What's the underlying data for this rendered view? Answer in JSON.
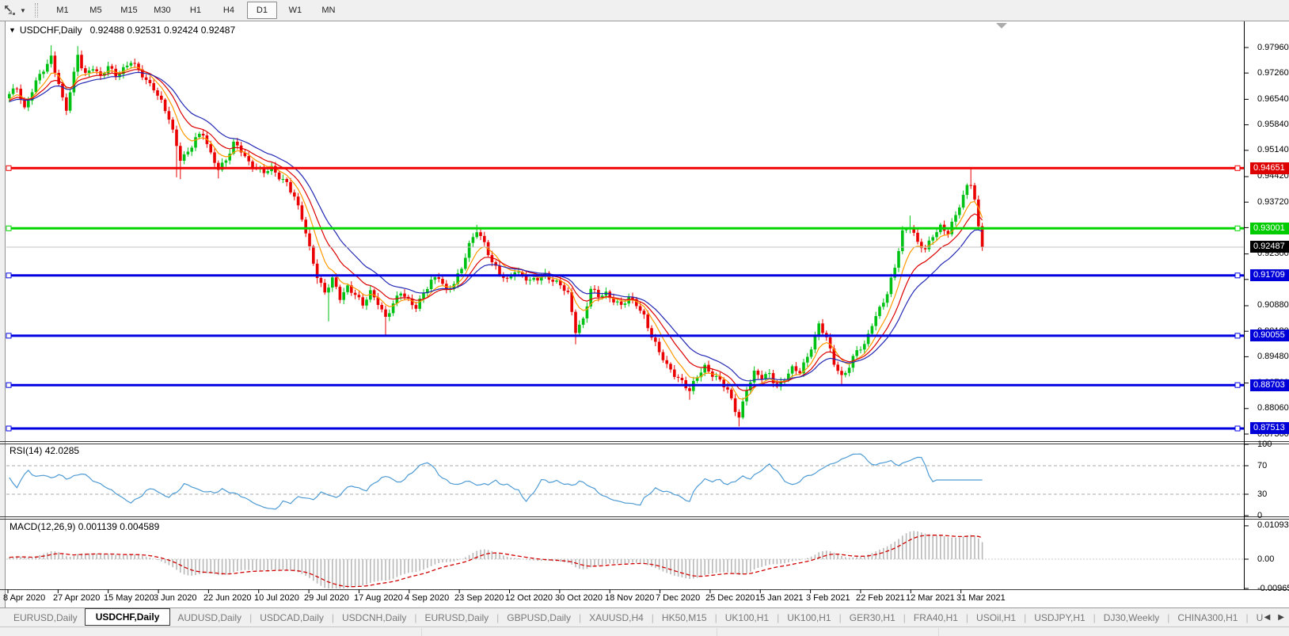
{
  "toolbar": {
    "tool_icon": "chart-cursor-icon",
    "timeframes": [
      "M1",
      "M5",
      "M15",
      "M30",
      "H1",
      "H4",
      "D1",
      "W1",
      "MN"
    ],
    "active_timeframe": "D1"
  },
  "chart": {
    "symbol_title": "USDCHF,Daily",
    "ohlc_readout": "0.92488 0.92531 0.92424 0.92487"
  },
  "indicators": {
    "rsi": {
      "label": "RSI(14)",
      "value": "42.0285"
    },
    "macd": {
      "label": "MACD(12,26,9)",
      "values": "0.001139 0.004589"
    }
  },
  "price_axis": {
    "ticks": [
      "0.97960",
      "0.97260",
      "0.96540",
      "0.95840",
      "0.95140",
      "0.94420",
      "0.93720",
      "0.93020",
      "0.92300",
      "0.91600",
      "0.90880",
      "0.90180",
      "0.89480",
      "0.88760",
      "0.88060",
      "0.87360"
    ],
    "badges": [
      {
        "label": "0.94651",
        "price": 0.94651,
        "color": "#DE0000"
      },
      {
        "label": "0.93001",
        "price": 0.93001,
        "color": "#00CC00"
      },
      {
        "label": "0.92487",
        "price": 0.92487,
        "color": "#000000"
      },
      {
        "label": "0.91709",
        "price": 0.91709,
        "color": "#0000D8"
      },
      {
        "label": "0.90055",
        "price": 0.90055,
        "color": "#0000D8"
      },
      {
        "label": "0.88703",
        "price": 0.88703,
        "color": "#0000D8"
      },
      {
        "label": "0.87513",
        "price": 0.87513,
        "color": "#0000D8"
      }
    ]
  },
  "rsi_axis": {
    "labels": [
      {
        "label": "100",
        "v": 100
      },
      {
        "label": "70",
        "v": 70
      },
      {
        "label": "30",
        "v": 30
      },
      {
        "label": "0",
        "v": 0
      }
    ],
    "dashed_levels": [
      70,
      30
    ]
  },
  "macd_axis": {
    "labels": [
      {
        "label": "0.010933",
        "v": 0.010933
      },
      {
        "label": "0.00",
        "v": 0
      },
      {
        "label": "-0.009653",
        "v": -0.009653
      }
    ]
  },
  "date_axis": [
    "8 Apr 2020",
    "27 Apr 2020",
    "15 May 2020",
    "3 Jun 2020",
    "22 Jun 2020",
    "10 Jul 2020",
    "29 Jul 2020",
    "17 Aug 2020",
    "4 Sep 2020",
    "23 Sep 2020",
    "12 Oct 2020",
    "30 Oct 2020",
    "18 Nov 2020",
    "7 Dec 2020",
    "25 Dec 2020",
    "15 Jan 2021",
    "3 Feb 2021",
    "22 Feb 2021",
    "12 Mar 2021",
    "31 Mar 2021"
  ],
  "tabbar": {
    "tabs": [
      {
        "label": "EURUSD,Daily",
        "active": false
      },
      {
        "label": "USDCHF,Daily",
        "active": true
      },
      {
        "label": "AUDUSD,Daily",
        "active": false
      },
      {
        "label": "USDCAD,Daily",
        "active": false
      },
      {
        "label": "USDCNH,Daily",
        "active": false
      },
      {
        "label": "EURUSD,Daily",
        "active": false
      },
      {
        "label": "GBPUSD,Daily",
        "active": false
      },
      {
        "label": "XAUUSD,H4",
        "active": false
      },
      {
        "label": "HK50,M15",
        "active": false
      },
      {
        "label": "UK100,H1",
        "active": false
      },
      {
        "label": "UK100,H1",
        "active": false
      },
      {
        "label": "GER30,H1",
        "active": false
      },
      {
        "label": "FRA40,H1",
        "active": false
      },
      {
        "label": "USOil,H1",
        "active": false
      },
      {
        "label": "USDJPY,H1",
        "active": false
      },
      {
        "label": "DJ30,Weekly",
        "active": false
      },
      {
        "label": "CHINA300,H1",
        "active": false
      },
      {
        "label": "U",
        "active": false
      }
    ],
    "scroll_left": "◀",
    "scroll_right": "▶"
  },
  "chart_data": {
    "type": "candlestick",
    "symbol": "USDCHF",
    "timeframe": "Daily",
    "num_candles": 257,
    "price_range_visible": [
      0.8736,
      0.9796
    ],
    "grid": false,
    "colors": {
      "up": "#00C214",
      "down": "#EA0000",
      "ma_fast": "#FF9900",
      "ma_mid": "#DD0000",
      "ma_slow": "#2328B4",
      "rsi_line": "#4E9BD4",
      "macd_bar": "#B8B8B8",
      "macd_signal": "#D00000",
      "current_price_line": "#C0C0C0"
    },
    "close_anchors": [
      [
        0,
        0.9665
      ],
      [
        2,
        0.9688
      ],
      [
        4,
        0.963
      ],
      [
        6,
        0.9678
      ],
      [
        8,
        0.9718
      ],
      [
        10,
        0.9748
      ],
      [
        11,
        0.9772
      ],
      [
        13,
        0.97
      ],
      [
        14,
        0.9655
      ],
      [
        15,
        0.9625
      ],
      [
        17,
        0.972
      ],
      [
        18,
        0.9775
      ],
      [
        19,
        0.9745
      ],
      [
        20,
        0.9725
      ],
      [
        22,
        0.9745
      ],
      [
        24,
        0.9712
      ],
      [
        26,
        0.9742
      ],
      [
        28,
        0.972
      ],
      [
        30,
        0.974
      ],
      [
        32,
        0.9758
      ],
      [
        34,
        0.973
      ],
      [
        36,
        0.9705
      ],
      [
        38,
        0.9688
      ],
      [
        40,
        0.9648
      ],
      [
        42,
        0.9598
      ],
      [
        44,
        0.9525
      ],
      [
        45,
        0.9492
      ],
      [
        47,
        0.9512
      ],
      [
        49,
        0.9548
      ],
      [
        51,
        0.9556
      ],
      [
        53,
        0.9502
      ],
      [
        55,
        0.9468
      ],
      [
        57,
        0.9488
      ],
      [
        59,
        0.953
      ],
      [
        61,
        0.9512
      ],
      [
        63,
        0.9482
      ],
      [
        65,
        0.9468
      ],
      [
        67,
        0.9452
      ],
      [
        69,
        0.9462
      ],
      [
        71,
        0.9442
      ],
      [
        73,
        0.9428
      ],
      [
        75,
        0.9385
      ],
      [
        77,
        0.9325
      ],
      [
        79,
        0.9245
      ],
      [
        81,
        0.9172
      ],
      [
        83,
        0.9125
      ],
      [
        85,
        0.9158
      ],
      [
        87,
        0.9108
      ],
      [
        89,
        0.9142
      ],
      [
        91,
        0.9122
      ],
      [
        93,
        0.9088
      ],
      [
        95,
        0.9122
      ],
      [
        97,
        0.9098
      ],
      [
        99,
        0.9058
      ],
      [
        101,
        0.9092
      ],
      [
        103,
        0.9122
      ],
      [
        105,
        0.9102
      ],
      [
        107,
        0.9088
      ],
      [
        109,
        0.9122
      ],
      [
        111,
        0.9152
      ],
      [
        113,
        0.9166
      ],
      [
        115,
        0.9132
      ],
      [
        117,
        0.9152
      ],
      [
        119,
        0.9188
      ],
      [
        121,
        0.9252
      ],
      [
        123,
        0.9298
      ],
      [
        125,
        0.9262
      ],
      [
        127,
        0.9205
      ],
      [
        129,
        0.9172
      ],
      [
        131,
        0.9158
      ],
      [
        133,
        0.9188
      ],
      [
        135,
        0.9168
      ],
      [
        137,
        0.9152
      ],
      [
        139,
        0.9162
      ],
      [
        141,
        0.9176
      ],
      [
        143,
        0.9158
      ],
      [
        145,
        0.9142
      ],
      [
        147,
        0.9118
      ],
      [
        149,
        0.9022
      ],
      [
        151,
        0.9052
      ],
      [
        153,
        0.9132
      ],
      [
        155,
        0.9112
      ],
      [
        157,
        0.9122
      ],
      [
        159,
        0.9106
      ],
      [
        161,
        0.9088
      ],
      [
        163,
        0.9106
      ],
      [
        165,
        0.9092
      ],
      [
        167,
        0.9062
      ],
      [
        169,
        0.9005
      ],
      [
        171,
        0.8958
      ],
      [
        173,
        0.8922
      ],
      [
        175,
        0.8902
      ],
      [
        177,
        0.8882
      ],
      [
        179,
        0.8852
      ],
      [
        181,
        0.8892
      ],
      [
        183,
        0.8922
      ],
      [
        185,
        0.8902
      ],
      [
        187,
        0.8882
      ],
      [
        189,
        0.8852
      ],
      [
        191,
        0.8802
      ],
      [
        192,
        0.8785
      ],
      [
        194,
        0.8862
      ],
      [
        196,
        0.8902
      ],
      [
        198,
        0.8888
      ],
      [
        200,
        0.8902
      ],
      [
        202,
        0.8868
      ],
      [
        204,
        0.8888
      ],
      [
        206,
        0.8912
      ],
      [
        208,
        0.8906
      ],
      [
        210,
        0.8952
      ],
      [
        212,
        0.9002
      ],
      [
        213,
        0.9035
      ],
      [
        215,
        0.8996
      ],
      [
        217,
        0.8932
      ],
      [
        219,
        0.8896
      ],
      [
        221,
        0.8922
      ],
      [
        223,
        0.8962
      ],
      [
        225,
        0.8978
      ],
      [
        227,
        0.9042
      ],
      [
        229,
        0.9082
      ],
      [
        231,
        0.9118
      ],
      [
        233,
        0.9192
      ],
      [
        235,
        0.9292
      ],
      [
        237,
        0.9312
      ],
      [
        239,
        0.9258
      ],
      [
        241,
        0.9238
      ],
      [
        243,
        0.9282
      ],
      [
        245,
        0.9308
      ],
      [
        247,
        0.9288
      ],
      [
        249,
        0.9332
      ],
      [
        251,
        0.9388
      ],
      [
        252,
        0.9418
      ],
      [
        253,
        0.9428
      ],
      [
        254,
        0.9382
      ],
      [
        255,
        0.9302
      ],
      [
        256,
        0.92487
      ]
    ],
    "wick_overrides": [
      [
        11,
        "h",
        0.9802
      ],
      [
        15,
        "l",
        0.9613
      ],
      [
        18,
        "h",
        0.98
      ],
      [
        44,
        "l",
        0.944
      ],
      [
        45,
        "l",
        0.9435
      ],
      [
        55,
        "l",
        0.9437
      ],
      [
        67,
        "l",
        0.9445
      ],
      [
        81,
        "l",
        0.9148
      ],
      [
        84,
        "l",
        0.9045
      ],
      [
        99,
        "l",
        0.9005
      ],
      [
        123,
        "h",
        0.931
      ],
      [
        149,
        "l",
        0.8982
      ],
      [
        179,
        "l",
        0.883
      ],
      [
        192,
        "l",
        0.8757
      ],
      [
        213,
        "h",
        0.9046
      ],
      [
        219,
        "l",
        0.8871
      ],
      [
        237,
        "h",
        0.9335
      ],
      [
        253,
        "h",
        0.9465
      ]
    ],
    "hlines": [
      {
        "price": 0.94651,
        "color": "#F00000",
        "width": 3
      },
      {
        "price": 0.93001,
        "color": "#00D500",
        "width": 3
      },
      {
        "price": 0.91709,
        "color": "#0000E0",
        "width": 3
      },
      {
        "price": 0.90055,
        "color": "#0000E0",
        "width": 3
      },
      {
        "price": 0.88703,
        "color": "#0000E0",
        "width": 3
      },
      {
        "price": 0.87513,
        "color": "#0000E0",
        "width": 3
      }
    ],
    "current_price": 0.92487,
    "moving_averages": [
      {
        "period": 7,
        "color": "#FF9900"
      },
      {
        "period": 13,
        "color": "#DD0000"
      },
      {
        "period": 21,
        "color": "#2328B4"
      }
    ],
    "rsi": {
      "period": 14,
      "last_value": 42.0285,
      "levels": [
        70,
        30
      ]
    },
    "macd": {
      "fast": 12,
      "slow": 26,
      "signal": 9,
      "last_main": 0.001139,
      "last_signal": 0.004589,
      "scale_max": 0.010933,
      "scale_min": -0.009653
    }
  }
}
